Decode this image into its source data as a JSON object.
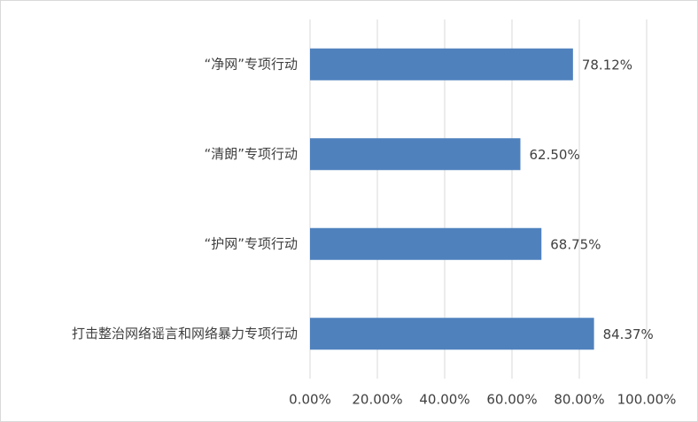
{
  "chart_data": {
    "type": "barh",
    "categories": [
      "“净网”专项行动",
      "“清朗”专项行动",
      "“护网”专项行动",
      "打击整治网络谣言和网络暴力专项行动"
    ],
    "values": [
      78.12,
      62.5,
      68.75,
      84.37
    ],
    "value_labels": [
      "78.12%",
      "62.50%",
      "68.75%",
      "84.37%"
    ],
    "color": "#4f81bd",
    "xlim": [
      0,
      100
    ],
    "xticks": [
      {
        "value": 0,
        "label": "0.00%"
      },
      {
        "value": 20,
        "label": "20.00%"
      },
      {
        "value": 40,
        "label": "40.00%"
      },
      {
        "value": 60,
        "label": "60.00%"
      },
      {
        "value": 80,
        "label": "80.00%"
      },
      {
        "value": 100,
        "label": "100.00%"
      }
    ],
    "grid": true
  }
}
